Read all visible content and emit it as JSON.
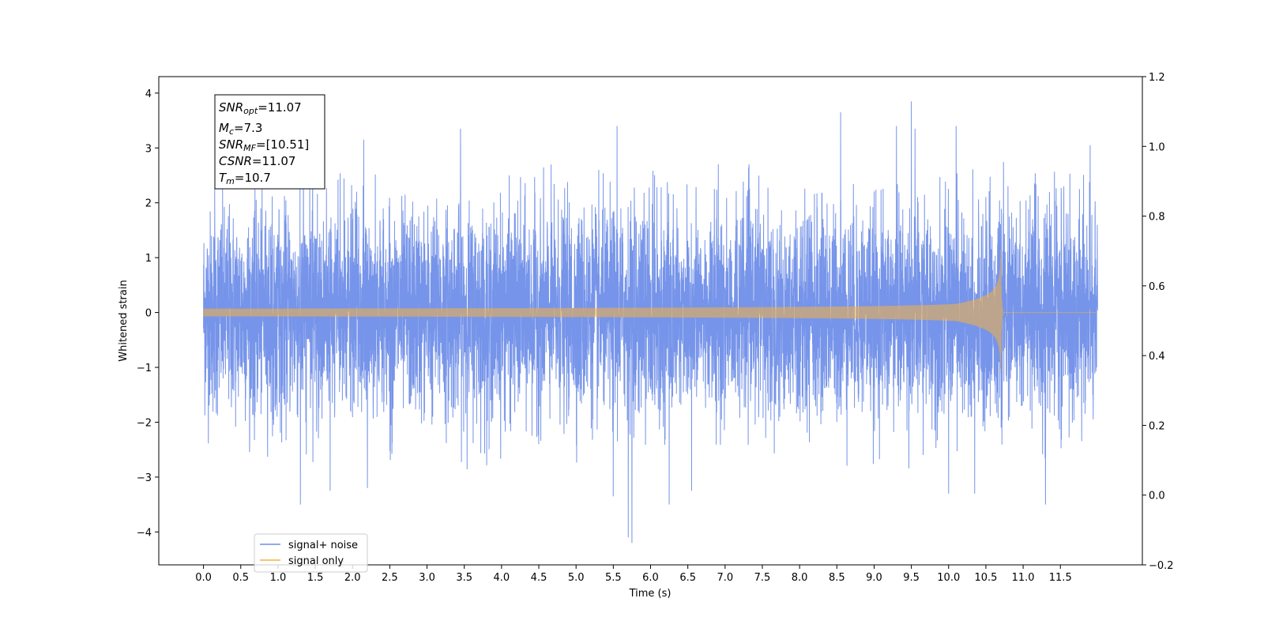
{
  "chart_data": {
    "type": "line",
    "title": "",
    "xlabel": "Time (s)",
    "ylabel": "Whitened strain",
    "xlim": [
      -0.6,
      12.6
    ],
    "ylim": [
      -4.6,
      4.3
    ],
    "ylim_right": [
      -0.2,
      1.2
    ],
    "x_ticks": [
      "0.0",
      "0.5",
      "1.0",
      "1.5",
      "2.0",
      "2.5",
      "3.0",
      "3.5",
      "4.0",
      "4.5",
      "5.0",
      "5.5",
      "6.0",
      "6.5",
      "7.0",
      "7.5",
      "8.0",
      "8.5",
      "9.0",
      "9.5",
      "10.0",
      "10.5",
      "11.0",
      "11.5"
    ],
    "y_ticks": [
      "4",
      "3",
      "2",
      "1",
      "0",
      "−1",
      "−2",
      "−3",
      "−4"
    ],
    "y_ticks_right": [
      "1.2",
      "1.0",
      "0.8",
      "0.6",
      "0.4",
      "0.2",
      "0.0",
      "−0.2"
    ],
    "grid": false,
    "legend_position": "lower-left",
    "series": [
      {
        "name": "signal+ noise",
        "color": "#6f8ee8",
        "x_range": [
          0.0,
          12.0
        ],
        "envelope_typical": 2.0,
        "peaks": [
          {
            "x": 0.15,
            "y": 2.25
          },
          {
            "x": 1.3,
            "y": -3.5
          },
          {
            "x": 1.7,
            "y": -3.25
          },
          {
            "x": 2.15,
            "y": 3.15
          },
          {
            "x": 2.2,
            "y": -3.2
          },
          {
            "x": 3.45,
            "y": 3.35
          },
          {
            "x": 5.55,
            "y": 3.4
          },
          {
            "x": 5.5,
            "y": -3.35
          },
          {
            "x": 5.7,
            "y": -4.1
          },
          {
            "x": 5.75,
            "y": -4.2
          },
          {
            "x": 6.25,
            "y": -3.5
          },
          {
            "x": 6.55,
            "y": -3.25
          },
          {
            "x": 8.55,
            "y": 3.65
          },
          {
            "x": 9.3,
            "y": 3.4
          },
          {
            "x": 9.5,
            "y": 3.85
          },
          {
            "x": 9.55,
            "y": 3.35
          },
          {
            "x": 10.0,
            "y": -3.3
          },
          {
            "x": 10.1,
            "y": 3.4
          },
          {
            "x": 10.35,
            "y": -3.3
          },
          {
            "x": 11.3,
            "y": -3.5
          },
          {
            "x": 11.9,
            "y": 3.05
          }
        ]
      },
      {
        "name": "signal only",
        "color": "#f5b041",
        "x_range": [
          0.0,
          12.0
        ],
        "merger_time": 10.7,
        "peak_amplitude": 1.35,
        "start_amplitude": 0.07
      }
    ]
  },
  "annotation": {
    "lines": [
      {
        "base": "SNR",
        "sub": "opt",
        "value": "=11.07"
      },
      {
        "base": "M",
        "sub": "c",
        "value": "=7.3"
      },
      {
        "base": "SNR",
        "sub": "MF",
        "value": "=[10.51]"
      },
      {
        "base": "CSNR",
        "sub": "",
        "value": "=11.07"
      },
      {
        "base": "T",
        "sub": "m",
        "value": "=10.7"
      }
    ]
  }
}
